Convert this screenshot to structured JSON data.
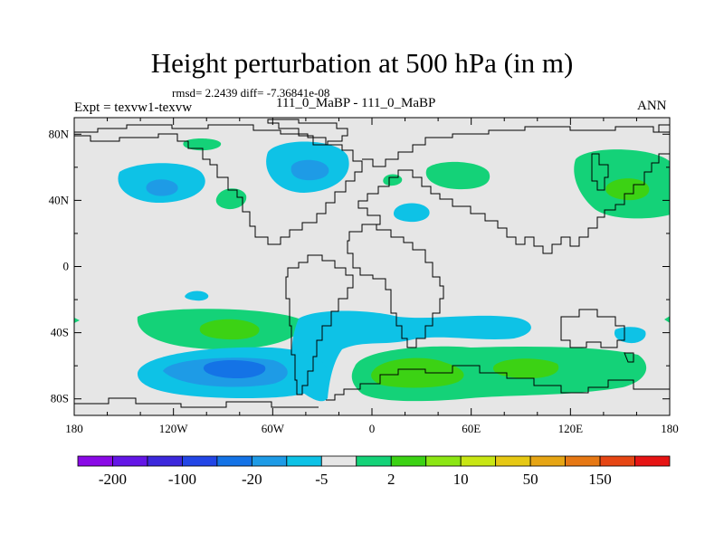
{
  "header": {
    "title": "Height perturbation at 500 hPa (in m)",
    "stats": "rmsd= 2.2439 diff= -7.36841e-08",
    "subtitle": "111_0_MaBP - 111_0_MaBP",
    "left_label": "Expt = texvw1-texvw",
    "right_label": "ANN"
  },
  "chart_data": {
    "type": "contour-map",
    "title": "Height perturbation at 500 hPa (in m)",
    "variable": "Height perturbation at 500 hPa",
    "units": "m",
    "xlim": [
      -180,
      180
    ],
    "ylim": [
      -90,
      90
    ],
    "x_ticks": [
      {
        "value": -180,
        "label": "180"
      },
      {
        "value": -120,
        "label": "120W"
      },
      {
        "value": -60,
        "label": "60W"
      },
      {
        "value": 0,
        "label": "0"
      },
      {
        "value": 60,
        "label": "60E"
      },
      {
        "value": 120,
        "label": "120E"
      },
      {
        "value": 180,
        "label": "180"
      }
    ],
    "y_ticks": [
      {
        "value": 80,
        "label": "80N"
      },
      {
        "value": 40,
        "label": "40N"
      },
      {
        "value": 0,
        "label": "0"
      },
      {
        "value": -40,
        "label": "40S"
      },
      {
        "value": -80,
        "label": "80S"
      }
    ],
    "colorbar": {
      "colors": [
        "#8a0ae6",
        "#6416e6",
        "#3c28dc",
        "#2346e6",
        "#1473e6",
        "#1e9be6",
        "#0ec2e6",
        "#e6e6e6",
        "#14d278",
        "#3cd214",
        "#8ce614",
        "#c8e614",
        "#e6c814",
        "#e6a514",
        "#e67814",
        "#e64614",
        "#e61414"
      ],
      "labels": [
        {
          "after_index": 0,
          "text": "-200"
        },
        {
          "after_index": 2,
          "text": "-100"
        },
        {
          "after_index": 4,
          "text": "-20"
        },
        {
          "after_index": 6,
          "text": "-5"
        },
        {
          "after_index": 8,
          "text": "2"
        },
        {
          "after_index": 10,
          "text": "10"
        },
        {
          "after_index": 12,
          "text": "50"
        },
        {
          "after_index": 14,
          "text": "150"
        }
      ]
    },
    "regions": [
      {
        "name": "north-pacific-low",
        "sign": "negative",
        "lon": -125,
        "lat": 48,
        "peak_class": "-10"
      },
      {
        "name": "north-atlantic-low",
        "sign": "negative",
        "lon": -37,
        "lat": 59,
        "peak_class": "-10"
      },
      {
        "name": "mediterranean-low",
        "sign": "negative",
        "lon": 22,
        "lat": 33,
        "peak_class": "-5"
      },
      {
        "name": "north-pacific-high",
        "sign": "positive",
        "lon": 155,
        "lat": 46,
        "peak_class": "10"
      },
      {
        "name": "eurasia-high",
        "sign": "positive",
        "lon": 45,
        "lat": 60,
        "peak_class": "5"
      },
      {
        "name": "south-pacific-high",
        "sign": "positive",
        "lon": -90,
        "lat": -35,
        "peak_class": "10"
      },
      {
        "name": "southern-ocean-low",
        "sign": "negative",
        "lon": -90,
        "lat": -63,
        "peak_class": "-20"
      },
      {
        "name": "southern-indian-high",
        "sign": "positive",
        "lon": 50,
        "lat": -63,
        "peak_class": "10"
      }
    ]
  }
}
